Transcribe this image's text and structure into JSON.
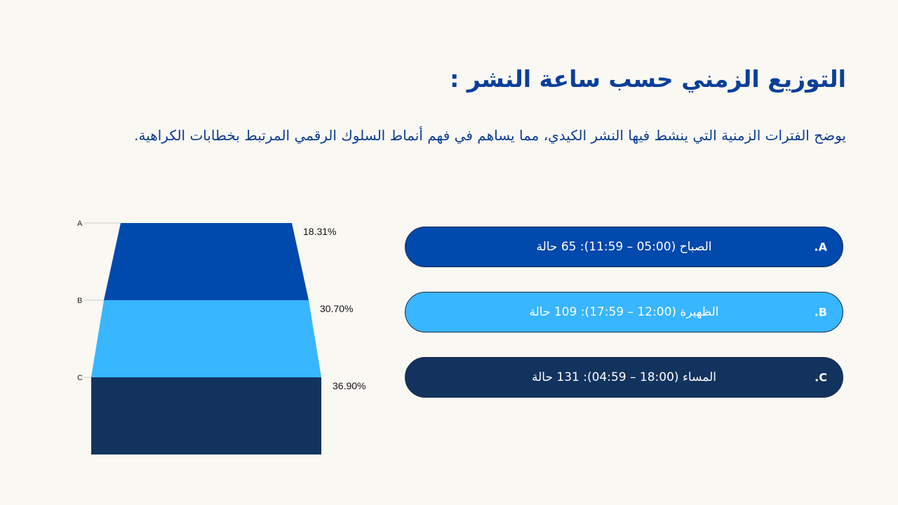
{
  "title": "التوزيع الزمني حسب ساعة النشر :",
  "subtitle": "يوضح الفترات الزمنية التي ينشط فيها النشر الكيدي، مما يساهم في فهم أنماط السلوك الرقمي المرتبط بخطابات الكراهية.",
  "items": [
    {
      "letter": "A.",
      "text": "الصباح (05:00 – 11:59): 65 حالة",
      "color": "#0049ad"
    },
    {
      "letter": "B.",
      "text": "الظهيرة (12:00 – 17:59): 109 حالة",
      "color": "#38b6ff"
    },
    {
      "letter": "C.",
      "text": "المساء (18:00 – 04:59): 131 حالة",
      "color": "#13335f"
    }
  ],
  "chart_data": {
    "type": "funnel",
    "categories": [
      "A",
      "B",
      "C"
    ],
    "values": [
      18.31,
      30.7,
      36.9
    ],
    "value_labels": [
      "18.31%",
      "30.70%",
      "36.90%"
    ],
    "colors": [
      "#0049ad",
      "#38b6ff",
      "#13335f"
    ]
  }
}
